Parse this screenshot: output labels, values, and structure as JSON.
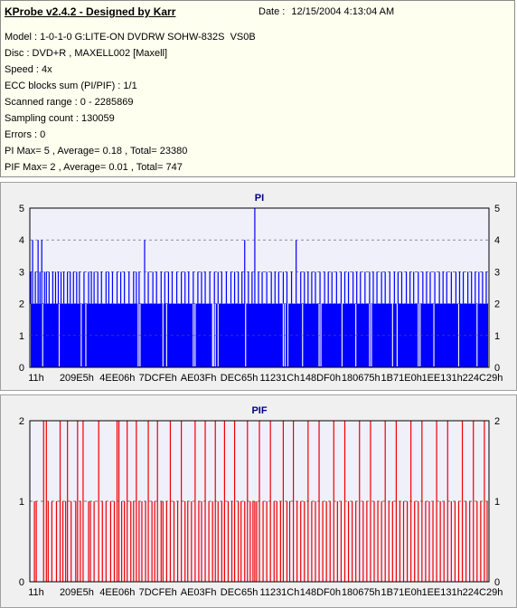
{
  "header": {
    "title": "KProbe v2.4.2 - Designed by Karr",
    "date_label": "Date :",
    "date_value": "12/15/2004 4:13:04 AM"
  },
  "info_lines": [
    "Model : 1-0-1-0 G:LITE-ON DVDRW SOHW-832S  VS0B",
    "Disc : DVD+R , MAXELL002 [Maxell]",
    "Speed : 4x",
    "ECC blocks sum (PI/PIF) : 1/1",
    "Scanned range : 0 - 2285869",
    "Sampling count : 130059",
    "Errors : 0",
    "PI Max= 5 , Average= 0.18 , Total= 23380",
    "PIF Max= 2 , Average= 0.01 , Total= 747"
  ],
  "colors": {
    "plot_bg": "#f0f0fb",
    "pi_bar": "#0000ff",
    "pif_bar": "#ee0000",
    "title_pi": "#000080",
    "title_pif": "#000080"
  },
  "chart_data": [
    {
      "type": "bar",
      "title": "PI",
      "ylim": [
        0,
        5
      ],
      "yticks": [
        0,
        1,
        2,
        3,
        4,
        5
      ],
      "grid": true,
      "x_tick_labels": [
        "11h",
        "209E5h",
        "4EE06h",
        "7DCFEh",
        "AE03Fh",
        "DEC65h",
        "11231Ch",
        "148DF0h",
        "180675h",
        "1B71E0h",
        "1EE131h",
        "224C29h"
      ],
      "baseline": 2,
      "spikes": [
        {
          "pos": 0.002,
          "value": 3
        },
        {
          "pos": 0.006,
          "value": 4
        },
        {
          "pos": 0.012,
          "value": 3
        },
        {
          "pos": 0.018,
          "value": 4
        },
        {
          "pos": 0.022,
          "value": 3
        },
        {
          "pos": 0.026,
          "value": 4
        },
        {
          "pos": 0.032,
          "value": 3
        },
        {
          "pos": 0.036,
          "value": 3
        },
        {
          "pos": 0.042,
          "value": 3
        },
        {
          "pos": 0.05,
          "value": 3
        },
        {
          "pos": 0.056,
          "value": 3
        },
        {
          "pos": 0.062,
          "value": 3
        },
        {
          "pos": 0.068,
          "value": 3
        },
        {
          "pos": 0.074,
          "value": 3
        },
        {
          "pos": 0.082,
          "value": 3
        },
        {
          "pos": 0.088,
          "value": 3
        },
        {
          "pos": 0.095,
          "value": 3
        },
        {
          "pos": 0.102,
          "value": 3
        },
        {
          "pos": 0.108,
          "value": 3
        },
        {
          "pos": 0.118,
          "value": 3
        },
        {
          "pos": 0.128,
          "value": 3
        },
        {
          "pos": 0.134,
          "value": 3
        },
        {
          "pos": 0.14,
          "value": 3
        },
        {
          "pos": 0.148,
          "value": 3
        },
        {
          "pos": 0.156,
          "value": 3
        },
        {
          "pos": 0.166,
          "value": 3
        },
        {
          "pos": 0.172,
          "value": 3
        },
        {
          "pos": 0.18,
          "value": 3
        },
        {
          "pos": 0.19,
          "value": 3
        },
        {
          "pos": 0.198,
          "value": 3
        },
        {
          "pos": 0.206,
          "value": 3
        },
        {
          "pos": 0.216,
          "value": 3
        },
        {
          "pos": 0.226,
          "value": 3
        },
        {
          "pos": 0.232,
          "value": 3
        },
        {
          "pos": 0.238,
          "value": 3
        },
        {
          "pos": 0.25,
          "value": 4
        },
        {
          "pos": 0.258,
          "value": 3
        },
        {
          "pos": 0.268,
          "value": 3
        },
        {
          "pos": 0.276,
          "value": 3
        },
        {
          "pos": 0.286,
          "value": 3
        },
        {
          "pos": 0.294,
          "value": 3
        },
        {
          "pos": 0.302,
          "value": 3
        },
        {
          "pos": 0.31,
          "value": 3
        },
        {
          "pos": 0.32,
          "value": 3
        },
        {
          "pos": 0.33,
          "value": 3
        },
        {
          "pos": 0.338,
          "value": 3
        },
        {
          "pos": 0.346,
          "value": 3
        },
        {
          "pos": 0.356,
          "value": 3
        },
        {
          "pos": 0.366,
          "value": 3
        },
        {
          "pos": 0.374,
          "value": 3
        },
        {
          "pos": 0.382,
          "value": 3
        },
        {
          "pos": 0.392,
          "value": 3
        },
        {
          "pos": 0.402,
          "value": 3
        },
        {
          "pos": 0.41,
          "value": 3
        },
        {
          "pos": 0.418,
          "value": 3
        },
        {
          "pos": 0.428,
          "value": 3
        },
        {
          "pos": 0.438,
          "value": 3
        },
        {
          "pos": 0.446,
          "value": 3
        },
        {
          "pos": 0.454,
          "value": 3
        },
        {
          "pos": 0.462,
          "value": 3
        },
        {
          "pos": 0.468,
          "value": 4
        },
        {
          "pos": 0.476,
          "value": 3
        },
        {
          "pos": 0.484,
          "value": 3
        },
        {
          "pos": 0.49,
          "value": 5
        },
        {
          "pos": 0.498,
          "value": 3
        },
        {
          "pos": 0.506,
          "value": 3
        },
        {
          "pos": 0.516,
          "value": 3
        },
        {
          "pos": 0.526,
          "value": 3
        },
        {
          "pos": 0.534,
          "value": 3
        },
        {
          "pos": 0.542,
          "value": 3
        },
        {
          "pos": 0.552,
          "value": 3
        },
        {
          "pos": 0.56,
          "value": 3
        },
        {
          "pos": 0.57,
          "value": 3
        },
        {
          "pos": 0.58,
          "value": 4
        },
        {
          "pos": 0.59,
          "value": 3
        },
        {
          "pos": 0.598,
          "value": 3
        },
        {
          "pos": 0.606,
          "value": 3
        },
        {
          "pos": 0.614,
          "value": 3
        },
        {
          "pos": 0.622,
          "value": 3
        },
        {
          "pos": 0.632,
          "value": 3
        },
        {
          "pos": 0.642,
          "value": 3
        },
        {
          "pos": 0.65,
          "value": 3
        },
        {
          "pos": 0.658,
          "value": 3
        },
        {
          "pos": 0.668,
          "value": 3
        },
        {
          "pos": 0.678,
          "value": 3
        },
        {
          "pos": 0.686,
          "value": 3
        },
        {
          "pos": 0.694,
          "value": 3
        },
        {
          "pos": 0.704,
          "value": 3
        },
        {
          "pos": 0.712,
          "value": 3
        },
        {
          "pos": 0.72,
          "value": 3
        },
        {
          "pos": 0.73,
          "value": 3
        },
        {
          "pos": 0.74,
          "value": 3
        },
        {
          "pos": 0.748,
          "value": 3
        },
        {
          "pos": 0.756,
          "value": 3
        },
        {
          "pos": 0.766,
          "value": 3
        },
        {
          "pos": 0.774,
          "value": 3
        },
        {
          "pos": 0.784,
          "value": 3
        },
        {
          "pos": 0.794,
          "value": 3
        },
        {
          "pos": 0.802,
          "value": 3
        },
        {
          "pos": 0.81,
          "value": 3
        },
        {
          "pos": 0.82,
          "value": 3
        },
        {
          "pos": 0.828,
          "value": 3
        },
        {
          "pos": 0.836,
          "value": 3
        },
        {
          "pos": 0.846,
          "value": 3
        },
        {
          "pos": 0.856,
          "value": 3
        },
        {
          "pos": 0.864,
          "value": 3
        },
        {
          "pos": 0.872,
          "value": 3
        },
        {
          "pos": 0.882,
          "value": 3
        },
        {
          "pos": 0.892,
          "value": 3
        },
        {
          "pos": 0.9,
          "value": 3
        },
        {
          "pos": 0.908,
          "value": 3
        },
        {
          "pos": 0.918,
          "value": 3
        },
        {
          "pos": 0.928,
          "value": 3
        },
        {
          "pos": 0.936,
          "value": 3
        },
        {
          "pos": 0.944,
          "value": 3
        },
        {
          "pos": 0.954,
          "value": 3
        },
        {
          "pos": 0.962,
          "value": 3
        },
        {
          "pos": 0.97,
          "value": 3
        },
        {
          "pos": 0.978,
          "value": 3
        },
        {
          "pos": 0.986,
          "value": 3
        },
        {
          "pos": 0.994,
          "value": 3
        }
      ],
      "gaps": [
        0.028,
        0.064,
        0.112,
        0.122,
        0.236,
        0.24,
        0.29,
        0.298,
        0.356,
        0.36,
        0.398,
        0.4,
        0.404,
        0.41,
        0.47,
        0.552,
        0.556,
        0.562,
        0.594,
        0.63,
        0.634,
        0.68,
        0.71,
        0.74,
        0.744,
        0.79,
        0.8,
        0.846,
        0.85,
        0.88,
        0.934,
        0.974
      ]
    },
    {
      "type": "bar",
      "title": "PIF",
      "ylim": [
        0,
        2
      ],
      "yticks": [
        0,
        1,
        2
      ],
      "grid": true,
      "x_tick_labels": [
        "11h",
        "209E5h",
        "4EE06h",
        "7DCFEh",
        "AE03Fh",
        "DEC65h",
        "11231Ch",
        "148DF0h",
        "180675h",
        "1B71E0h",
        "1EE131h",
        "224C29h"
      ],
      "baseline": 0,
      "spikes": [
        {
          "pos": 0.01,
          "value": 1
        },
        {
          "pos": 0.014,
          "value": 1
        },
        {
          "pos": 0.03,
          "value": 2
        },
        {
          "pos": 0.036,
          "value": 2
        },
        {
          "pos": 0.04,
          "value": 1
        },
        {
          "pos": 0.048,
          "value": 1
        },
        {
          "pos": 0.058,
          "value": 1
        },
        {
          "pos": 0.066,
          "value": 2
        },
        {
          "pos": 0.072,
          "value": 1
        },
        {
          "pos": 0.078,
          "value": 1
        },
        {
          "pos": 0.082,
          "value": 2
        },
        {
          "pos": 0.09,
          "value": 1
        },
        {
          "pos": 0.1,
          "value": 1
        },
        {
          "pos": 0.104,
          "value": 2
        },
        {
          "pos": 0.11,
          "value": 1
        },
        {
          "pos": 0.116,
          "value": 2
        },
        {
          "pos": 0.128,
          "value": 1
        },
        {
          "pos": 0.132,
          "value": 1
        },
        {
          "pos": 0.14,
          "value": 1
        },
        {
          "pos": 0.15,
          "value": 2
        },
        {
          "pos": 0.158,
          "value": 1
        },
        {
          "pos": 0.166,
          "value": 1
        },
        {
          "pos": 0.176,
          "value": 1
        },
        {
          "pos": 0.184,
          "value": 1
        },
        {
          "pos": 0.19,
          "value": 2
        },
        {
          "pos": 0.194,
          "value": 2
        },
        {
          "pos": 0.2,
          "value": 1
        },
        {
          "pos": 0.206,
          "value": 1
        },
        {
          "pos": 0.212,
          "value": 2
        },
        {
          "pos": 0.22,
          "value": 1
        },
        {
          "pos": 0.226,
          "value": 1
        },
        {
          "pos": 0.232,
          "value": 2
        },
        {
          "pos": 0.238,
          "value": 1
        },
        {
          "pos": 0.244,
          "value": 1
        },
        {
          "pos": 0.252,
          "value": 1
        },
        {
          "pos": 0.258,
          "value": 2
        },
        {
          "pos": 0.266,
          "value": 1
        },
        {
          "pos": 0.272,
          "value": 1
        },
        {
          "pos": 0.278,
          "value": 2
        },
        {
          "pos": 0.286,
          "value": 1
        },
        {
          "pos": 0.29,
          "value": 1
        },
        {
          "pos": 0.298,
          "value": 1
        },
        {
          "pos": 0.306,
          "value": 2
        },
        {
          "pos": 0.314,
          "value": 1
        },
        {
          "pos": 0.322,
          "value": 1
        },
        {
          "pos": 0.33,
          "value": 2
        },
        {
          "pos": 0.338,
          "value": 1
        },
        {
          "pos": 0.344,
          "value": 1
        },
        {
          "pos": 0.352,
          "value": 1
        },
        {
          "pos": 0.36,
          "value": 2
        },
        {
          "pos": 0.368,
          "value": 1
        },
        {
          "pos": 0.374,
          "value": 1
        },
        {
          "pos": 0.382,
          "value": 2
        },
        {
          "pos": 0.39,
          "value": 1
        },
        {
          "pos": 0.398,
          "value": 1
        },
        {
          "pos": 0.404,
          "value": 2
        },
        {
          "pos": 0.41,
          "value": 1
        },
        {
          "pos": 0.418,
          "value": 1
        },
        {
          "pos": 0.424,
          "value": 2
        },
        {
          "pos": 0.432,
          "value": 1
        },
        {
          "pos": 0.44,
          "value": 1
        },
        {
          "pos": 0.446,
          "value": 2
        },
        {
          "pos": 0.454,
          "value": 1
        },
        {
          "pos": 0.46,
          "value": 1
        },
        {
          "pos": 0.468,
          "value": 1
        },
        {
          "pos": 0.474,
          "value": 2
        },
        {
          "pos": 0.48,
          "value": 1
        },
        {
          "pos": 0.486,
          "value": 1
        },
        {
          "pos": 0.49,
          "value": 1
        },
        {
          "pos": 0.494,
          "value": 1
        },
        {
          "pos": 0.5,
          "value": 2
        },
        {
          "pos": 0.508,
          "value": 1
        },
        {
          "pos": 0.516,
          "value": 1
        },
        {
          "pos": 0.524,
          "value": 2
        },
        {
          "pos": 0.532,
          "value": 1
        },
        {
          "pos": 0.538,
          "value": 1
        },
        {
          "pos": 0.546,
          "value": 1
        },
        {
          "pos": 0.552,
          "value": 2
        },
        {
          "pos": 0.56,
          "value": 1
        },
        {
          "pos": 0.566,
          "value": 1
        },
        {
          "pos": 0.574,
          "value": 2
        },
        {
          "pos": 0.582,
          "value": 1
        },
        {
          "pos": 0.59,
          "value": 1
        },
        {
          "pos": 0.598,
          "value": 1
        },
        {
          "pos": 0.606,
          "value": 2
        },
        {
          "pos": 0.614,
          "value": 1
        },
        {
          "pos": 0.622,
          "value": 1
        },
        {
          "pos": 0.63,
          "value": 2
        },
        {
          "pos": 0.638,
          "value": 1
        },
        {
          "pos": 0.646,
          "value": 1
        },
        {
          "pos": 0.654,
          "value": 1
        },
        {
          "pos": 0.662,
          "value": 2
        },
        {
          "pos": 0.67,
          "value": 1
        },
        {
          "pos": 0.678,
          "value": 1
        },
        {
          "pos": 0.686,
          "value": 2
        },
        {
          "pos": 0.694,
          "value": 1
        },
        {
          "pos": 0.702,
          "value": 1
        },
        {
          "pos": 0.71,
          "value": 1
        },
        {
          "pos": 0.718,
          "value": 2
        },
        {
          "pos": 0.726,
          "value": 1
        },
        {
          "pos": 0.734,
          "value": 1
        },
        {
          "pos": 0.742,
          "value": 2
        },
        {
          "pos": 0.75,
          "value": 1
        },
        {
          "pos": 0.758,
          "value": 1
        },
        {
          "pos": 0.766,
          "value": 1
        },
        {
          "pos": 0.774,
          "value": 2
        },
        {
          "pos": 0.782,
          "value": 1
        },
        {
          "pos": 0.79,
          "value": 1
        },
        {
          "pos": 0.798,
          "value": 2
        },
        {
          "pos": 0.806,
          "value": 1
        },
        {
          "pos": 0.814,
          "value": 1
        },
        {
          "pos": 0.822,
          "value": 1
        },
        {
          "pos": 0.83,
          "value": 2
        },
        {
          "pos": 0.838,
          "value": 1
        },
        {
          "pos": 0.846,
          "value": 1
        },
        {
          "pos": 0.854,
          "value": 2
        },
        {
          "pos": 0.862,
          "value": 1
        },
        {
          "pos": 0.87,
          "value": 1
        },
        {
          "pos": 0.878,
          "value": 1
        },
        {
          "pos": 0.886,
          "value": 2
        },
        {
          "pos": 0.894,
          "value": 1
        },
        {
          "pos": 0.902,
          "value": 1
        },
        {
          "pos": 0.91,
          "value": 2
        },
        {
          "pos": 0.918,
          "value": 1
        },
        {
          "pos": 0.926,
          "value": 1
        },
        {
          "pos": 0.934,
          "value": 1
        },
        {
          "pos": 0.942,
          "value": 2
        },
        {
          "pos": 0.95,
          "value": 1
        },
        {
          "pos": 0.958,
          "value": 1
        },
        {
          "pos": 0.966,
          "value": 2
        },
        {
          "pos": 0.974,
          "value": 1
        },
        {
          "pos": 0.982,
          "value": 1
        },
        {
          "pos": 0.99,
          "value": 2
        },
        {
          "pos": 0.996,
          "value": 1
        }
      ],
      "gaps": []
    }
  ]
}
